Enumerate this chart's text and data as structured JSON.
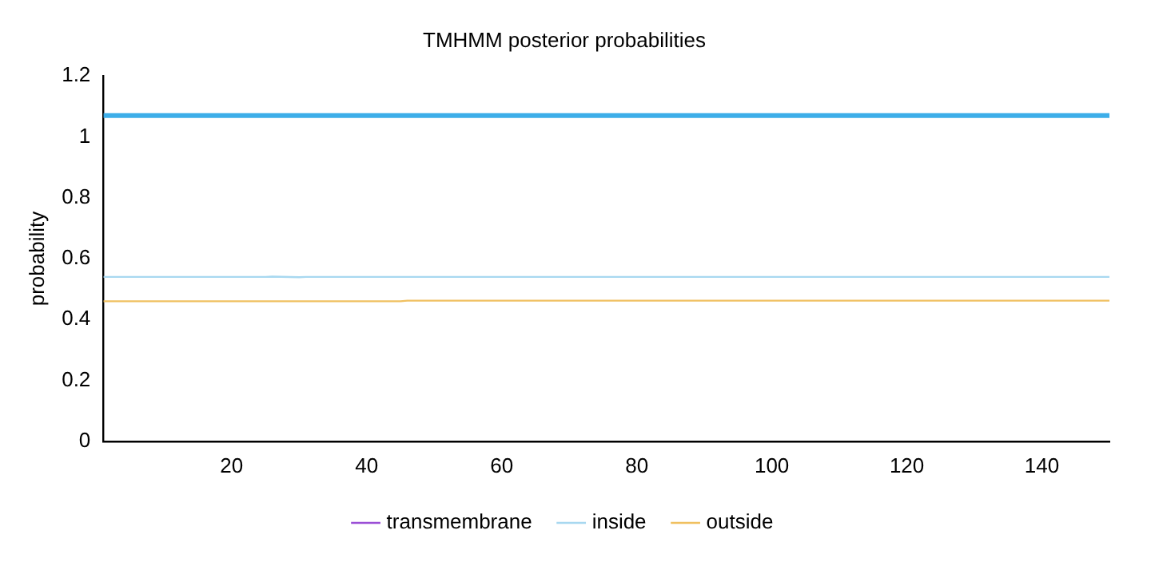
{
  "chart_data": {
    "type": "line",
    "title": "TMHMM posterior probabilities",
    "ylabel": "probability",
    "xlim": [
      1,
      150
    ],
    "xticks": [
      20,
      40,
      60,
      80,
      100,
      120,
      140
    ],
    "ylim": [
      0,
      1.2
    ],
    "yticks": [
      0,
      0.2,
      0.4,
      0.6,
      0.8,
      1,
      1.2
    ],
    "series": [
      {
        "name": "transmembrane",
        "color": "#9b4fd6"
      },
      {
        "name": "inside",
        "color": "#a8d8f0",
        "x": [
          1,
          25,
          26,
          30,
          31,
          150
        ],
        "values": [
          0.54,
          0.54,
          0.541,
          0.539,
          0.54,
          0.54
        ]
      },
      {
        "name": "outside",
        "color": "#f0c060",
        "x": [
          1,
          45,
          46,
          150
        ],
        "values": [
          0.46,
          0.46,
          0.462,
          0.462
        ]
      },
      {
        "color": "#3daee9",
        "x": [
          1,
          150
        ],
        "values": [
          1.07,
          1.07
        ]
      }
    ],
    "grid": false,
    "legend": "bottom",
    "marker": "none",
    "line_style": "solid"
  }
}
